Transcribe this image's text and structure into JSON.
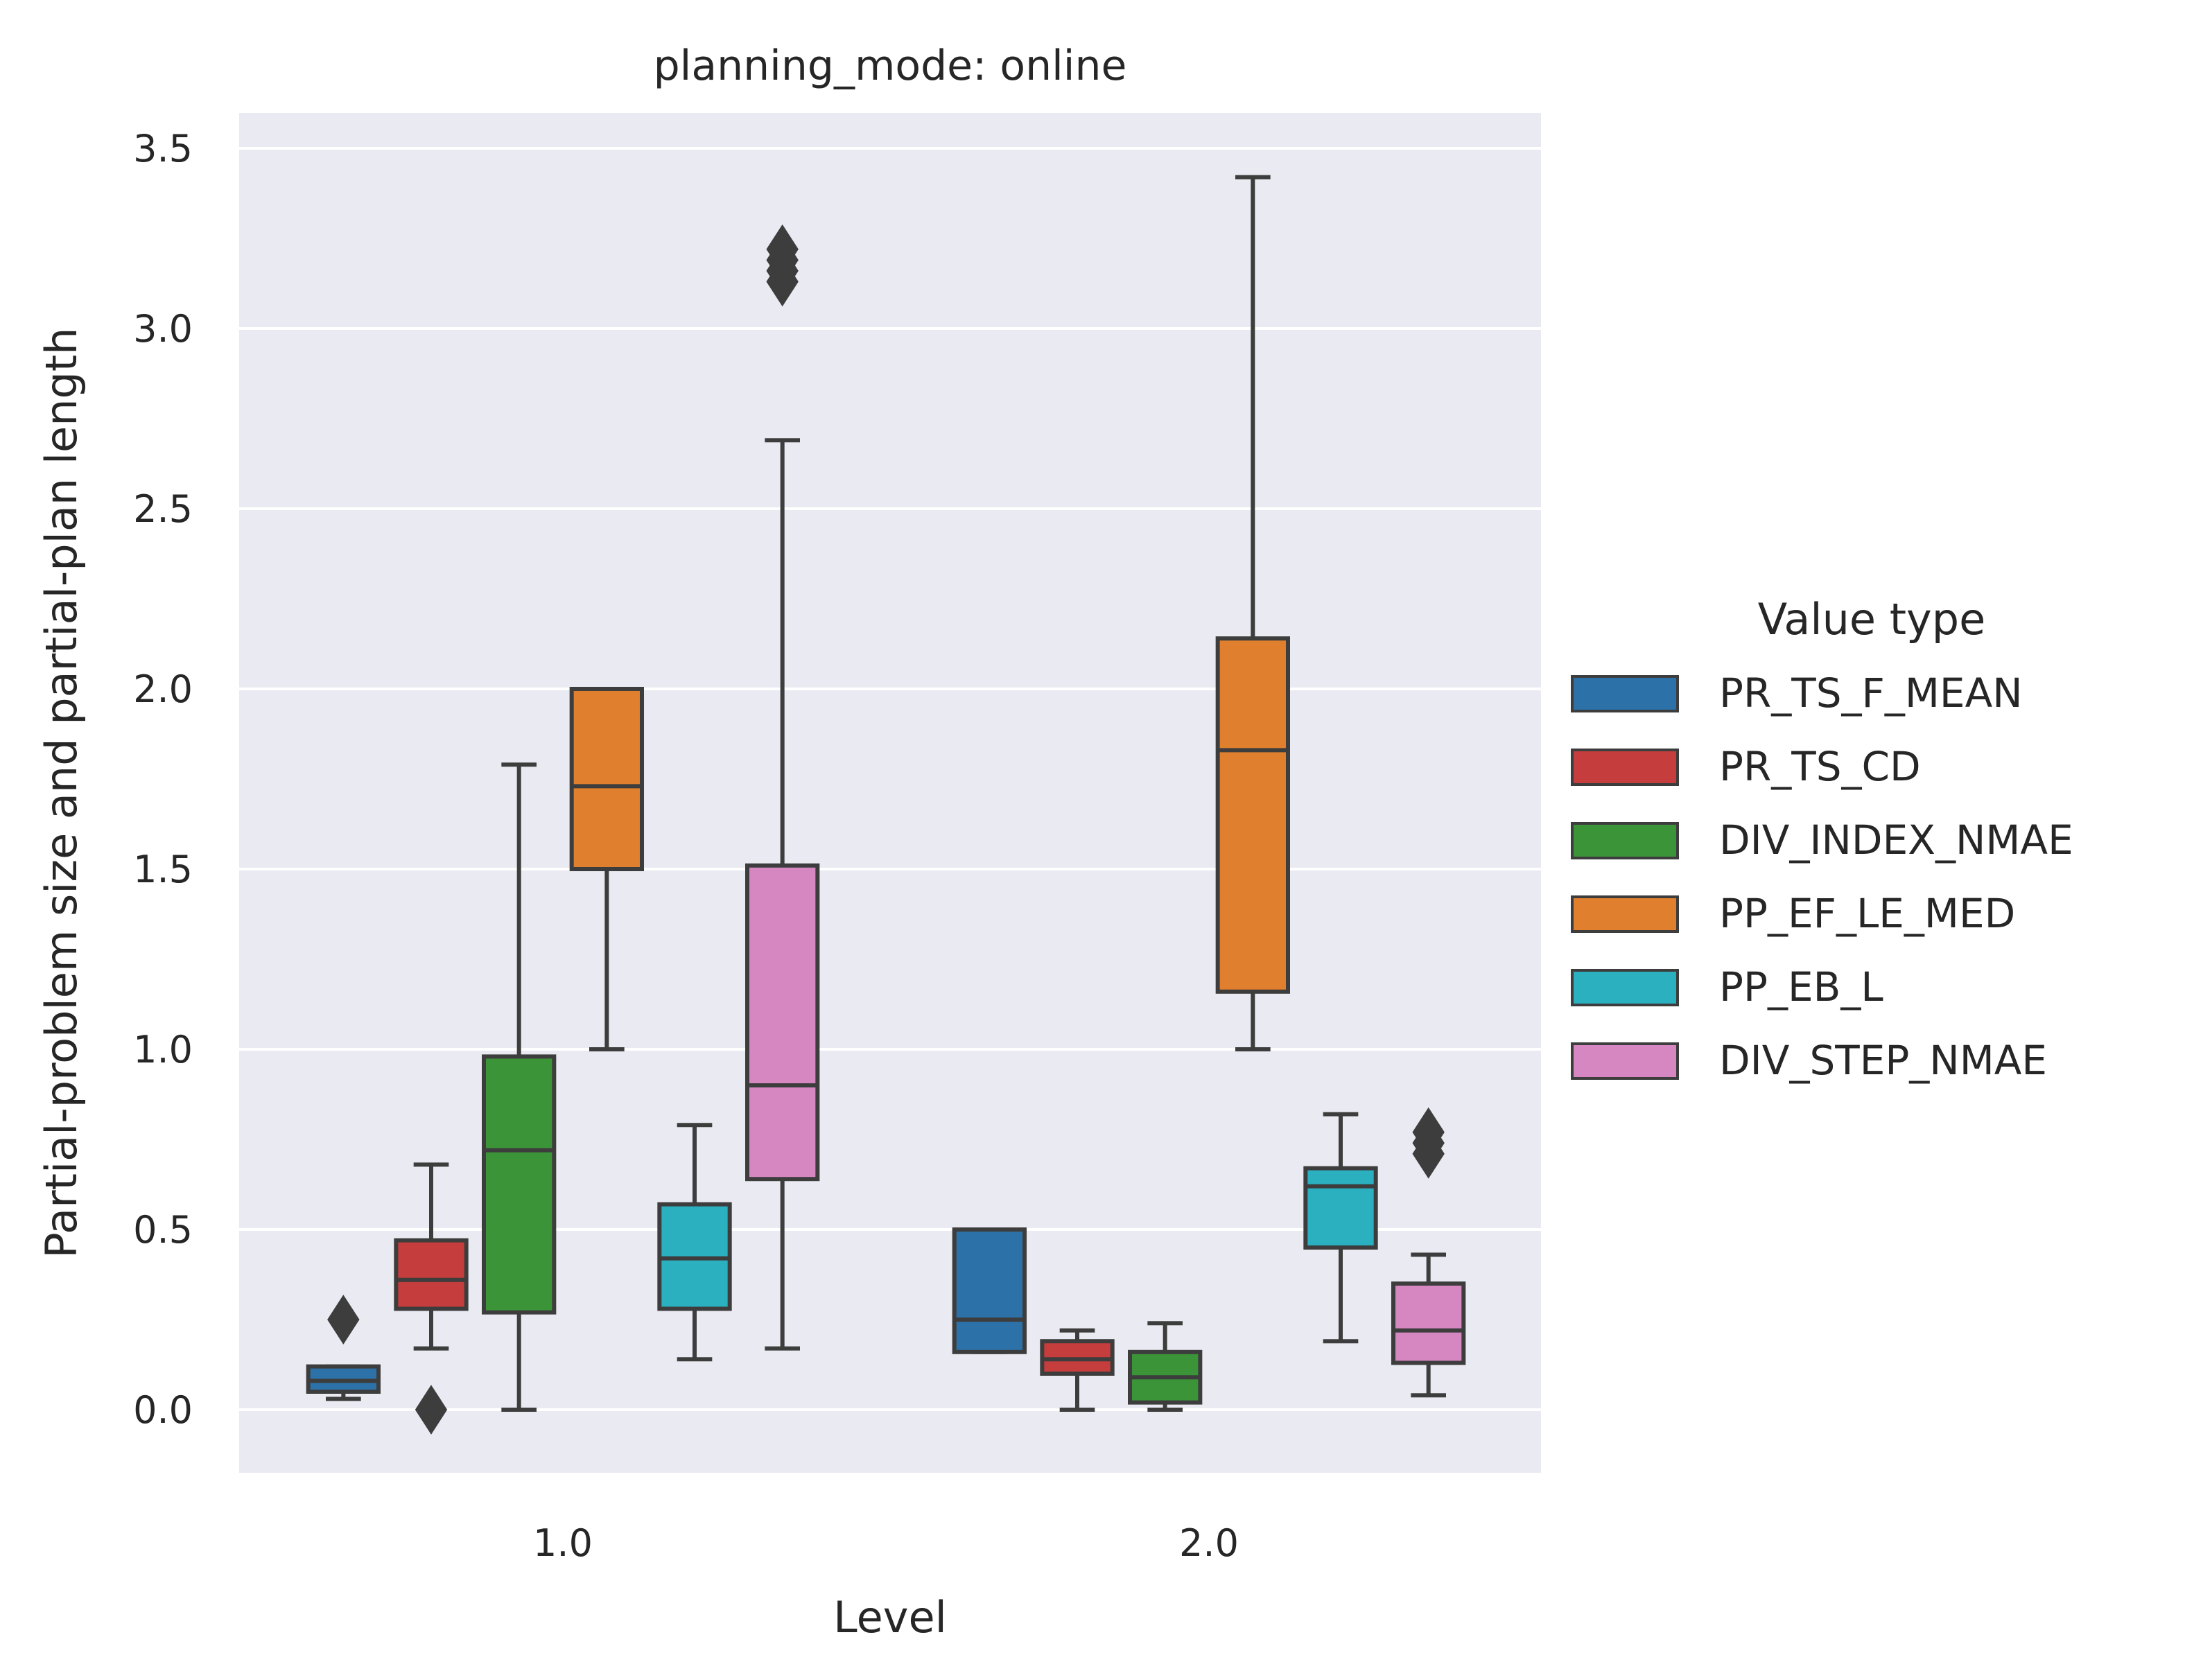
{
  "chart_data": {
    "type": "box",
    "title": "planning_mode: online",
    "xlabel": "Level",
    "ylabel": "Partial-problem size and partial-plan length",
    "categories": [
      "1.0",
      "2.0"
    ],
    "ylim": [
      -0.17,
      3.6
    ],
    "yticks": [
      0.0,
      0.5,
      1.0,
      1.5,
      2.0,
      2.5,
      3.0,
      3.5
    ],
    "ytick_labels": [
      "0.0",
      "0.5",
      "1.0",
      "1.5",
      "2.0",
      "2.5",
      "3.0",
      "3.5"
    ],
    "grid": true,
    "background": "#eaeaf2",
    "legend": {
      "title": "Value type",
      "position": "right"
    },
    "series": [
      {
        "name": "PR_TS_F_MEAN",
        "color": "#2c72a8",
        "boxes": [
          {
            "whislo": 0.03,
            "q1": 0.05,
            "med": 0.08,
            "q3": 0.12,
            "whishi": 0.12,
            "fliers": [
              0.25
            ]
          },
          {
            "whislo": 0.16,
            "q1": 0.16,
            "med": 0.25,
            "q3": 0.5,
            "whishi": 0.5,
            "fliers": []
          }
        ]
      },
      {
        "name": "PR_TS_CD",
        "color": "#c63d3d",
        "boxes": [
          {
            "whislo": 0.17,
            "q1": 0.28,
            "med": 0.36,
            "q3": 0.47,
            "whishi": 0.68,
            "fliers": [
              0.0
            ]
          },
          {
            "whislo": 0.0,
            "q1": 0.1,
            "med": 0.14,
            "q3": 0.19,
            "whishi": 0.22,
            "fliers": []
          }
        ]
      },
      {
        "name": "DIV_INDEX_NMAE",
        "color": "#3c9438",
        "boxes": [
          {
            "whislo": 0.0,
            "q1": 0.27,
            "med": 0.72,
            "q3": 0.98,
            "whishi": 1.79,
            "fliers": []
          },
          {
            "whislo": 0.0,
            "q1": 0.02,
            "med": 0.09,
            "q3": 0.16,
            "whishi": 0.24,
            "fliers": []
          }
        ]
      },
      {
        "name": "PP_EF_LE_MED",
        "color": "#e0802e",
        "boxes": [
          {
            "whislo": 1.0,
            "q1": 1.5,
            "med": 1.73,
            "q3": 2.0,
            "whishi": 2.0,
            "fliers": []
          },
          {
            "whislo": 1.0,
            "q1": 1.16,
            "med": 1.83,
            "q3": 2.14,
            "whishi": 3.42,
            "fliers": []
          }
        ]
      },
      {
        "name": "PP_EB_L",
        "color": "#2bb0c0",
        "boxes": [
          {
            "whislo": 0.14,
            "q1": 0.28,
            "med": 0.42,
            "q3": 0.57,
            "whishi": 0.79,
            "fliers": []
          },
          {
            "whislo": 0.19,
            "q1": 0.45,
            "med": 0.62,
            "q3": 0.67,
            "whishi": 0.82,
            "fliers": []
          }
        ]
      },
      {
        "name": "DIV_STEP_NMAE",
        "color": "#d687c1",
        "boxes": [
          {
            "whislo": 0.17,
            "q1": 0.64,
            "med": 0.9,
            "q3": 1.51,
            "whishi": 2.69,
            "fliers": [
              3.13,
              3.16,
              3.19,
              3.22
            ]
          },
          {
            "whislo": 0.04,
            "q1": 0.13,
            "med": 0.22,
            "q3": 0.35,
            "whishi": 0.43,
            "fliers": [
              0.71,
              0.74,
              0.77
            ]
          }
        ]
      }
    ]
  }
}
